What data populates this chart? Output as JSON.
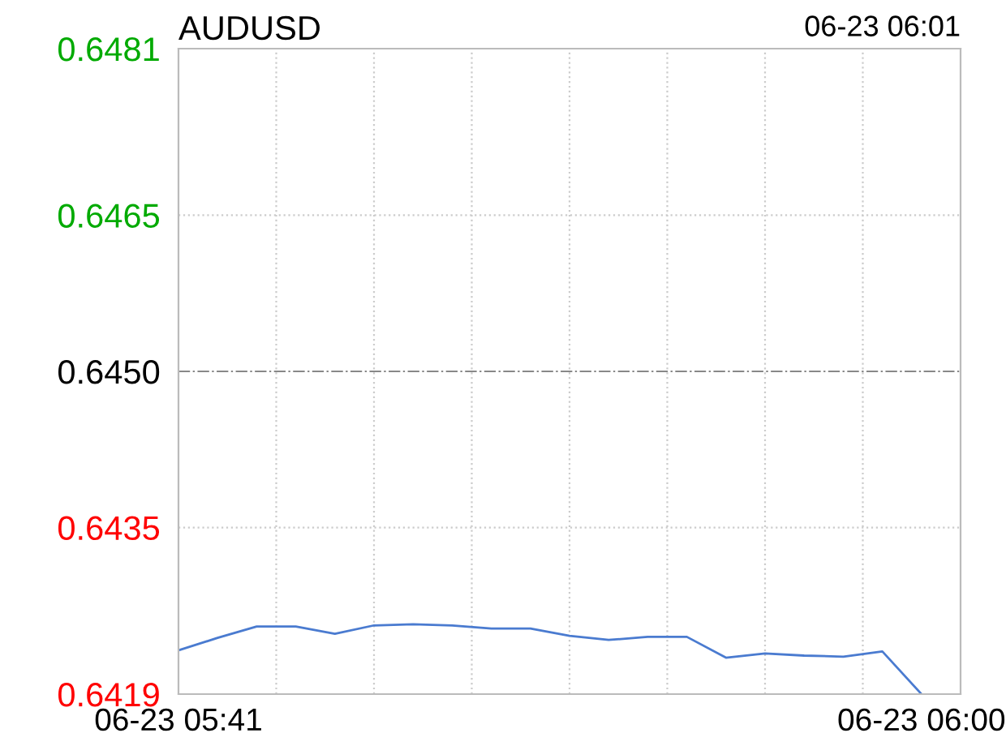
{
  "chart_data": {
    "type": "line",
    "title": "AUDUSD",
    "annotations": [
      "06-23 06:01"
    ],
    "categories": [
      "06-23 05:41",
      null,
      null,
      null,
      null,
      null,
      null,
      null,
      null,
      null,
      null,
      null,
      null,
      null,
      null,
      null,
      null,
      null,
      null,
      "06-23 06:00"
    ],
    "series": [
      {
        "color": "#4a7bd0",
        "values": [
          0.64232,
          0.64244,
          0.64255,
          0.64255,
          0.64248,
          0.64256,
          0.64257,
          0.64256,
          0.64253,
          0.64253,
          0.64246,
          0.64242,
          0.64245,
          0.64245,
          0.64225,
          0.64229,
          0.64227,
          0.64226,
          0.64231,
          0.6419
        ]
      }
    ],
    "ylim": [
      0.6419,
      0.6481
    ],
    "yticks": [
      {
        "value": 0.6419,
        "label": "0.6419"
      },
      {
        "value": 0.6435,
        "label": "0.6435"
      },
      {
        "value": 0.645,
        "label": "0.6450"
      },
      {
        "value": 0.6465,
        "label": "0.6465"
      },
      {
        "value": 0.6481,
        "label": "0.6481"
      }
    ],
    "ref_lines": [
      {
        "axis": "y",
        "value": 0.645,
        "color": "#888888",
        "line_style": "dashdot"
      }
    ],
    "grid": true,
    "marker": "none",
    "line_style": "solid"
  }
}
